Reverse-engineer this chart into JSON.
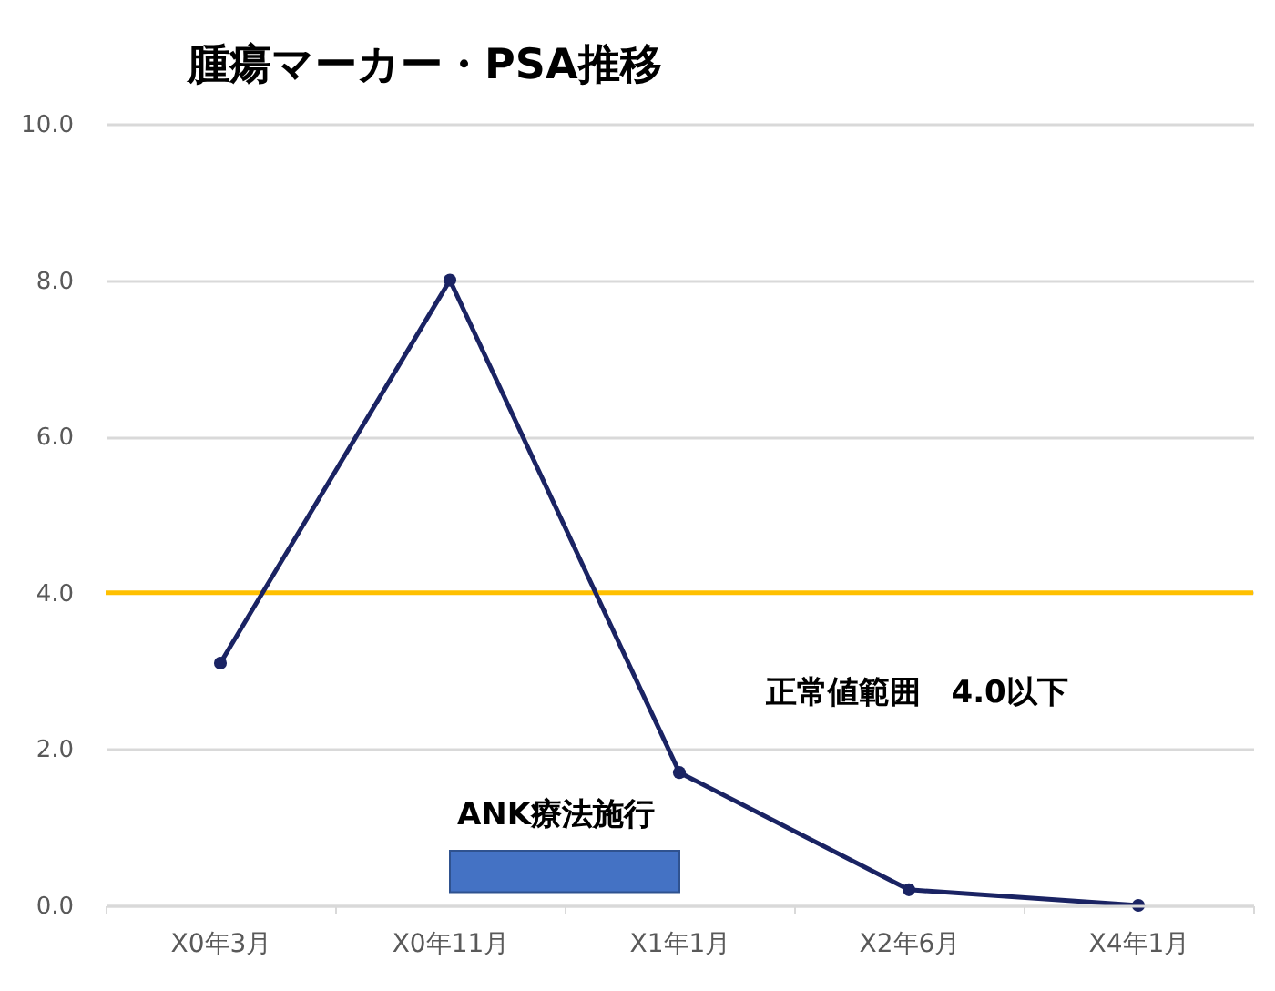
{
  "chart_data": {
    "type": "line",
    "title": "腫瘍マーカー・PSA推移",
    "categories": [
      "X0年3月",
      "X0年11月",
      "X1年1月",
      "X2年6月",
      "X4年1月"
    ],
    "series": [
      {
        "color": "#1a2363",
        "values": [
          3.1,
          8.0,
          1.7,
          0.2,
          0.0
        ]
      }
    ],
    "ylim": [
      0,
      10
    ],
    "yticks": [
      {
        "value": 0,
        "label": "0.0"
      },
      {
        "value": 2,
        "label": "2.0"
      },
      {
        "value": 4,
        "label": "4.0"
      },
      {
        "value": 6,
        "label": "6.0"
      },
      {
        "value": 8,
        "label": "8.0"
      },
      {
        "value": 10,
        "label": "10.0"
      }
    ],
    "grid": "y",
    "marker": "circle",
    "line_style": "solid",
    "ref_lines": [
      {
        "axis": "y",
        "value": 4.0,
        "label": "正常値範囲　4.0以下",
        "color": "#ffc000"
      }
    ],
    "bands": [
      {
        "axis": "x",
        "from": "X0年11月",
        "to": "X1年1月",
        "label": "ANK療法施行",
        "color": "#4472c4"
      }
    ]
  }
}
